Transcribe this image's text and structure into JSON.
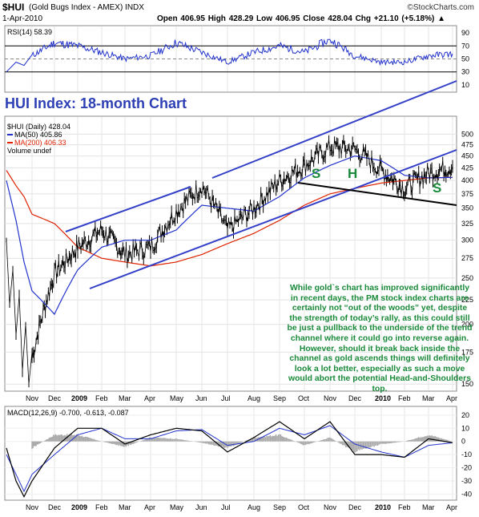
{
  "header": {
    "symbol": "$HUI",
    "name": "(Gold Bugs Index - AMEX) INDX",
    "date": "1-Apr-2010",
    "ohlc": "Open 406.95  High 428.29  Low 406.95  Close 428.04  Chg +21.10 (+5.18%) ▲",
    "watermark": "©StockCharts.com"
  },
  "rsi": {
    "label": "RSI(14) 58.39",
    "ticks": [
      "90",
      "70",
      "50",
      "30",
      "10"
    ]
  },
  "chart_title": "HUI Index: 18-month Chart",
  "main_legend": {
    "line1": "$HUI (Daily) 428.04",
    "line2": "MA(50) 405.86",
    "line3": "MA(200) 406.33",
    "line4": "Volume undef"
  },
  "price_ticks": [
    "500",
    "475",
    "450",
    "425",
    "400",
    "375",
    "350",
    "325",
    "300",
    "275",
    "250",
    "225",
    "200",
    "175",
    "150"
  ],
  "hs_labels": [
    "S",
    "H",
    "S"
  ],
  "commentary": "While gold`s chart has improved significantly in recent days, the PM stock index charts are certainly not “out of the woods” yet, despite the strength of today’s rally, as this could still be just a pullback to the underside of the trend channel where it could go into reverse again. However, should it break back inside the channel as gold ascends things will definitely look a lot better, especially as such a move would abort the potential Head-and-Shoulders top.",
  "macd": {
    "label": "MACD(12,26,9) -0.700, -0.613, -0.087",
    "ticks": [
      "20",
      "10",
      "0",
      "-10",
      "-20",
      "-30",
      "-40"
    ]
  },
  "x_labels": [
    "Nov",
    "Dec",
    "2009",
    "Feb",
    "Mar",
    "Apr",
    "May",
    "Jun",
    "Jul",
    "Aug",
    "Sep",
    "Oct",
    "Nov",
    "Dec",
    "2010",
    "Feb",
    "Mar",
    "Apr"
  ],
  "colors": {
    "price": "#000000",
    "ma50": "#2233cc",
    "ma200": "#dd2200",
    "channel": "#3340c8",
    "neckline": "#000000",
    "rsi": "#2233cc",
    "hs": "#1a8a3a"
  },
  "chart_data": {
    "type": "line",
    "title": "HUI Index: 18-month Chart",
    "x": [
      "2008-11",
      "2008-12",
      "2009-01",
      "2009-02",
      "2009-03",
      "2009-04",
      "2009-05",
      "2009-06",
      "2009-07",
      "2009-08",
      "2009-09",
      "2009-10",
      "2009-11",
      "2009-12",
      "2010-01",
      "2010-02",
      "2010-03",
      "2010-04"
    ],
    "series": [
      {
        "name": "$HUI (Daily)",
        "values": [
          170,
          255,
          290,
          315,
          280,
          290,
          345,
          390,
          315,
          350,
          400,
          430,
          470,
          465,
          420,
          385,
          415,
          428
        ]
      },
      {
        "name": "MA(50)",
        "values": [
          235,
          210,
          260,
          290,
          300,
          300,
          315,
          355,
          350,
          345,
          370,
          405,
          430,
          450,
          440,
          410,
          405,
          406
        ]
      },
      {
        "name": "MA(200)",
        "values": [
          340,
          325,
          290,
          275,
          270,
          265,
          270,
          280,
          295,
          310,
          330,
          355,
          375,
          385,
          395,
          400,
          405,
          406
        ]
      }
    ],
    "rsi_14": [
      55,
      75,
      70,
      60,
      50,
      55,
      75,
      60,
      45,
      60,
      70,
      60,
      80,
      55,
      45,
      45,
      55,
      58
    ],
    "macd": {
      "macd": [
        -30,
        -5,
        10,
        10,
        -2,
        5,
        10,
        8,
        -8,
        3,
        15,
        2,
        15,
        -10,
        -10,
        -12,
        2,
        -1
      ],
      "signal": [
        -25,
        -10,
        5,
        10,
        2,
        2,
        8,
        9,
        -3,
        0,
        10,
        5,
        12,
        -2,
        -8,
        -12,
        -3,
        -1
      ],
      "histogram": [
        -5,
        5,
        5,
        0,
        -4,
        3,
        2,
        -1,
        -5,
        3,
        5,
        -3,
        3,
        -8,
        -2,
        0,
        5,
        0
      ]
    },
    "ylim": [
      150,
      510
    ],
    "xlabel": "",
    "ylabel": ""
  }
}
